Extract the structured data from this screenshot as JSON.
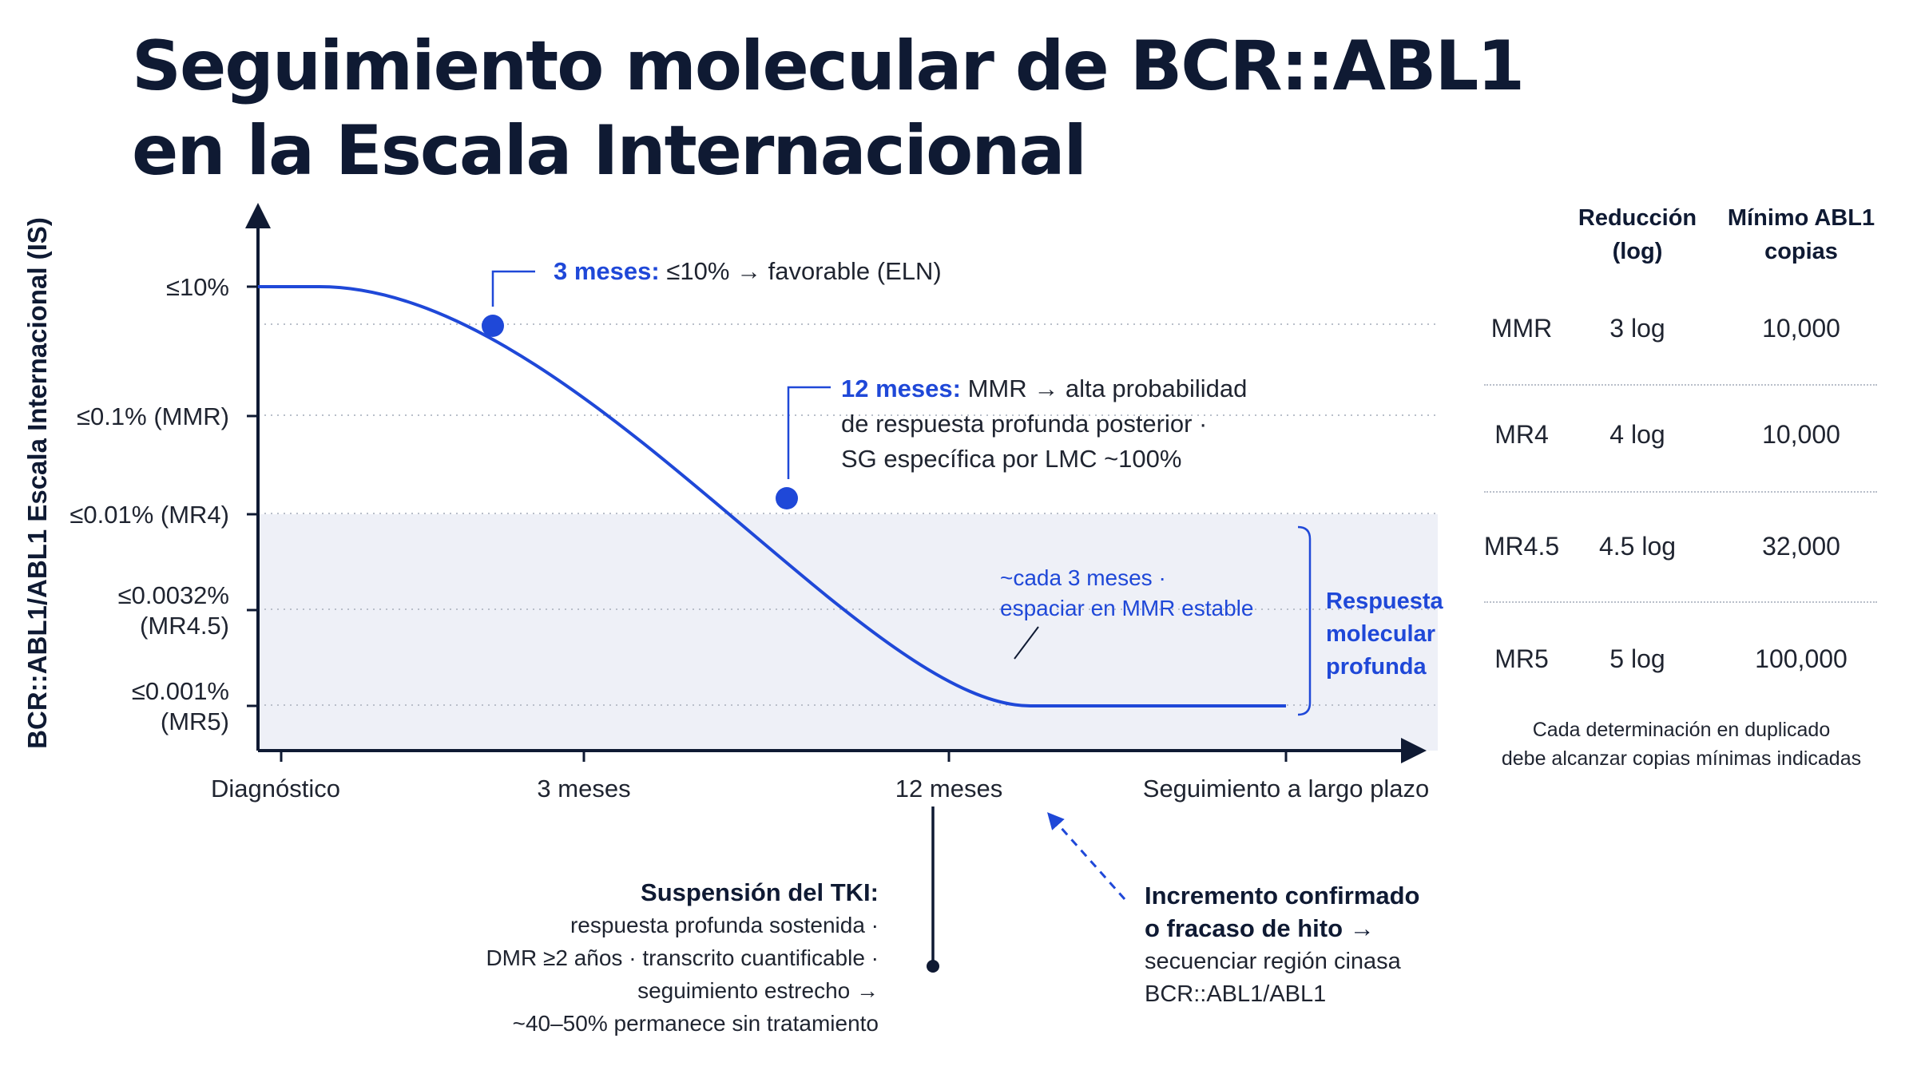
{
  "title": {
    "line1": "Seguimiento molecular de BCR::ABL1",
    "line2": "en la Escala Internacional"
  },
  "colors": {
    "curve": "#1f48d8",
    "accent": "#1f48d8",
    "axis": "#0f1a33",
    "text": "#1f2430",
    "band": "#eef0f7",
    "grid": "#b9bfca"
  },
  "chart_data": {
    "type": "line",
    "ylabel": "BCR::ABL1/ABL1 Escala Internacional (IS)",
    "x_categories": [
      "Diagnóstico",
      "3 meses",
      "12 meses",
      "Seguimiento a largo plazo"
    ],
    "y_ticks": [
      {
        "lines": [
          "≤10%"
        ],
        "value": 10
      },
      {
        "lines": [
          "≤0.1% (MMR)"
        ],
        "value": 0.1
      },
      {
        "lines": [
          "≤0.01% (MR4)"
        ],
        "value": 0.01
      },
      {
        "lines": [
          "≤0.0032%",
          "(MR4.5)"
        ],
        "value": 0.0032
      },
      {
        "lines": [
          "≤0.001%",
          "(MR5)"
        ],
        "value": 0.001
      }
    ],
    "y_scale": "log",
    "series": [
      {
        "points": [
          {
            "x": "Diagnóstico",
            "y": 10
          },
          {
            "x": "3 meses",
            "y": 10
          },
          {
            "x": "12 meses",
            "y": 0.001
          },
          {
            "x": "Seguimiento a largo plazo",
            "y": 0.001
          }
        ]
      }
    ],
    "milestones": [
      {
        "bold": "3 meses:",
        "rest": [
          "≤10% → favorable (ELN)"
        ]
      },
      {
        "bold": "12 meses:",
        "rest": [
          "MMR → alta probabilidad",
          "de respuesta profunda posterior ·",
          "SG específica por LMC ~100%"
        ]
      }
    ],
    "monitoring_note": [
      "~cada 3 meses ·",
      "espaciar en MMR estable"
    ],
    "band_label": [
      "Respuesta",
      "molecular",
      "profunda"
    ],
    "grid": true
  },
  "annotations": {
    "tki_stop": {
      "title": "Suspensión del TKI:",
      "lines": [
        "respuesta profunda sostenida ·",
        "DMR ≥2 años · transcrito cuantificable ·",
        "seguimiento estrecho →",
        "~40–50% permanece sin tratamiento"
      ]
    },
    "failure": {
      "title_lines": [
        "Incremento confirmado",
        "o fracaso de hito →"
      ],
      "lines": [
        "secuenciar región cinasa",
        "BCR::ABL1/ABL1"
      ]
    }
  },
  "table": {
    "headers": {
      "reduction": [
        "Reducción",
        "(log)"
      ],
      "min_abl1": [
        "Mínimo ABL1",
        "copias"
      ]
    },
    "rows": [
      {
        "level": "MMR",
        "reduction": "3 log",
        "copies": "10,000"
      },
      {
        "level": "MR4",
        "reduction": "4 log",
        "copies": "10,000"
      },
      {
        "level": "MR4.5",
        "reduction": "4.5 log",
        "copies": "32,000"
      },
      {
        "level": "MR5",
        "reduction": "5 log",
        "copies": "100,000"
      }
    ],
    "note": [
      "Cada determinación en duplicado",
      "debe alcanzar copias mínimas indicadas"
    ]
  }
}
